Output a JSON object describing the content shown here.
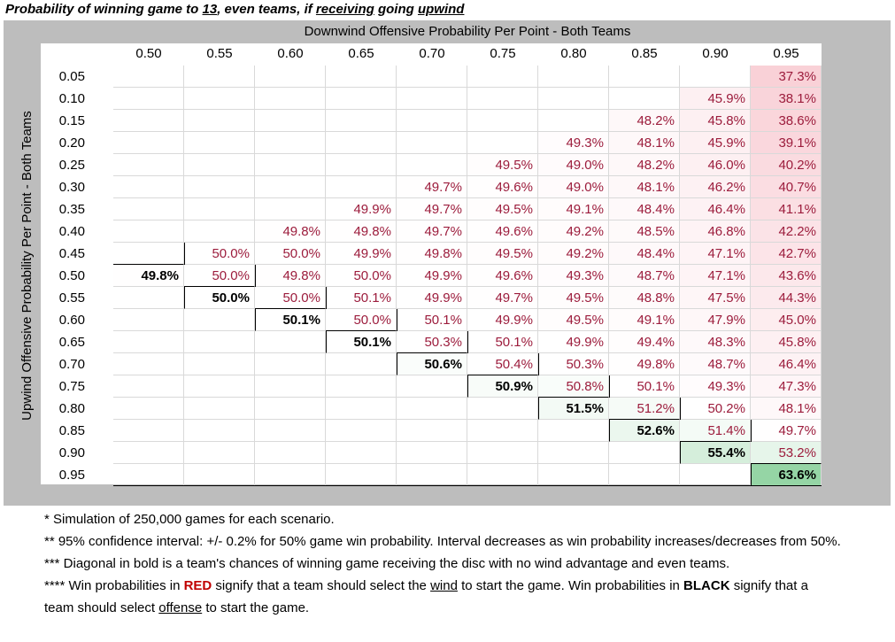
{
  "title": {
    "p1": "Probability of winning game to ",
    "score": "13",
    "p2": ", even teams, if ",
    "receiving": "receiving",
    "p3": " going ",
    "upwind": "upwind"
  },
  "chart_data": {
    "type": "table",
    "xlabel": "Downwind Offensive Probability Per Point - Both Teams",
    "ylabel": "Upwind Offensive Probability Per Point - Both Teams",
    "columns": [
      "0.50",
      "0.55",
      "0.60",
      "0.65",
      "0.70",
      "0.75",
      "0.80",
      "0.85",
      "0.90",
      "0.95"
    ],
    "rows": [
      "0.05",
      "0.10",
      "0.15",
      "0.20",
      "0.25",
      "0.30",
      "0.35",
      "0.40",
      "0.45",
      "0.50",
      "0.55",
      "0.60",
      "0.65",
      "0.70",
      "0.75",
      "0.80",
      "0.85",
      "0.90",
      "0.95"
    ],
    "values": [
      [
        null,
        null,
        null,
        null,
        null,
        null,
        null,
        null,
        null,
        "37.3%"
      ],
      [
        null,
        null,
        null,
        null,
        null,
        null,
        null,
        null,
        "45.9%",
        "38.1%"
      ],
      [
        null,
        null,
        null,
        null,
        null,
        null,
        null,
        "48.2%",
        "45.8%",
        "38.6%"
      ],
      [
        null,
        null,
        null,
        null,
        null,
        null,
        "49.3%",
        "48.1%",
        "45.9%",
        "39.1%"
      ],
      [
        null,
        null,
        null,
        null,
        null,
        "49.5%",
        "49.0%",
        "48.2%",
        "46.0%",
        "40.2%"
      ],
      [
        null,
        null,
        null,
        null,
        "49.7%",
        "49.6%",
        "49.0%",
        "48.1%",
        "46.2%",
        "40.7%"
      ],
      [
        null,
        null,
        null,
        "49.9%",
        "49.7%",
        "49.5%",
        "49.1%",
        "48.4%",
        "46.4%",
        "41.1%"
      ],
      [
        null,
        null,
        "49.8%",
        "49.8%",
        "49.7%",
        "49.6%",
        "49.2%",
        "48.5%",
        "46.8%",
        "42.2%"
      ],
      [
        null,
        "50.0%",
        "50.0%",
        "49.9%",
        "49.8%",
        "49.5%",
        "49.2%",
        "48.4%",
        "47.1%",
        "42.7%"
      ],
      [
        "49.8%",
        "50.0%",
        "49.8%",
        "50.0%",
        "49.9%",
        "49.6%",
        "49.3%",
        "48.7%",
        "47.1%",
        "43.6%"
      ],
      [
        null,
        "50.0%",
        "50.0%",
        "50.1%",
        "49.9%",
        "49.7%",
        "49.5%",
        "48.8%",
        "47.5%",
        "44.3%"
      ],
      [
        null,
        null,
        "50.1%",
        "50.0%",
        "50.1%",
        "49.9%",
        "49.5%",
        "49.1%",
        "47.9%",
        "45.0%"
      ],
      [
        null,
        null,
        null,
        "50.1%",
        "50.3%",
        "50.1%",
        "49.9%",
        "49.4%",
        "48.3%",
        "45.8%"
      ],
      [
        null,
        null,
        null,
        null,
        "50.6%",
        "50.4%",
        "50.3%",
        "49.8%",
        "48.7%",
        "46.4%"
      ],
      [
        null,
        null,
        null,
        null,
        null,
        "50.9%",
        "50.8%",
        "50.1%",
        "49.3%",
        "47.3%"
      ],
      [
        null,
        null,
        null,
        null,
        null,
        null,
        "51.5%",
        "51.2%",
        "50.2%",
        "48.1%"
      ],
      [
        null,
        null,
        null,
        null,
        null,
        null,
        null,
        "52.6%",
        "51.4%",
        "49.7%"
      ],
      [
        null,
        null,
        null,
        null,
        null,
        null,
        null,
        null,
        "55.4%",
        "53.2%"
      ],
      [
        null,
        null,
        null,
        null,
        null,
        null,
        null,
        null,
        null,
        "63.6%"
      ]
    ],
    "red_color": "#9c1c3c",
    "black_color": "#000000",
    "heat_red": "#f4a9b5",
    "heat_green": "#8fd3a0"
  },
  "notes": {
    "n1": "* Simulation of 250,000 games for each scenario.",
    "n2": "** 95% confidence interval: +/- 0.2% for 50% game win probability. Interval decreases as win probability increases/decreases from 50%.",
    "n3": "*** Diagonal in bold is a team's chances of winning game receiving the disc with no wind advantage and even teams.",
    "n4a": "**** Win probabilities in ",
    "n4_red": "RED",
    "n4b": " signify that a team should select the ",
    "n4_wind": "wind",
    "n4c": " to start the game. Win probabilities in ",
    "n4_black": "BLACK",
    "n4d": " signify that a team should select ",
    "n4_offense": "offense",
    "n4e": " to start the game."
  }
}
